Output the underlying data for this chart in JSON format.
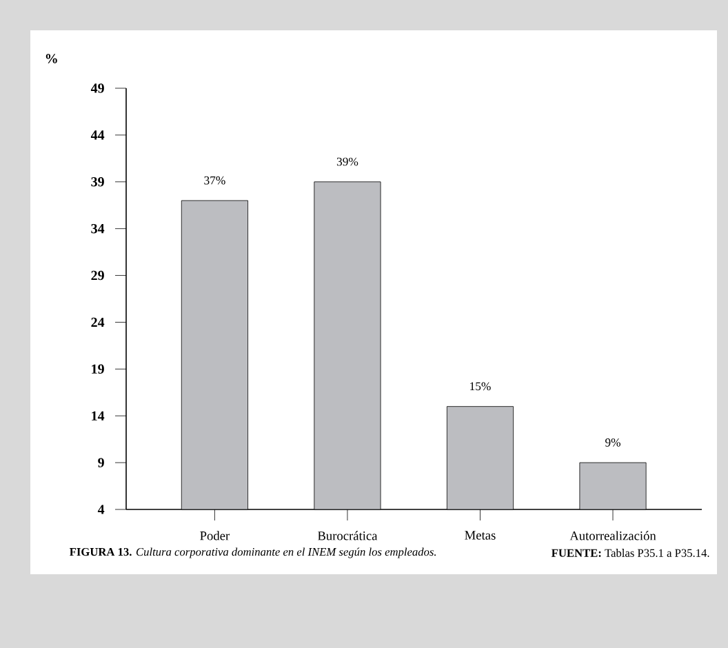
{
  "chart_data": {
    "type": "bar",
    "ylabel": "%",
    "categories": [
      "Poder",
      "Burocrática",
      "Metas",
      "Autorrealización"
    ],
    "values": [
      37,
      39,
      15,
      9
    ],
    "value_labels": [
      "37%",
      "39%",
      "15%",
      "9%"
    ],
    "color": "#bcbdc1",
    "ylim": [
      4,
      49
    ],
    "yticks": [
      4,
      9,
      14,
      19,
      24,
      29,
      34,
      39,
      44,
      49
    ],
    "grid": false,
    "annotations": [
      "**FIGURA 13.** *Cultura corporativa dominante en el INEM según los empleados.*",
      "**FUENTE:** Tablas P35.1 a P35.14."
    ]
  }
}
